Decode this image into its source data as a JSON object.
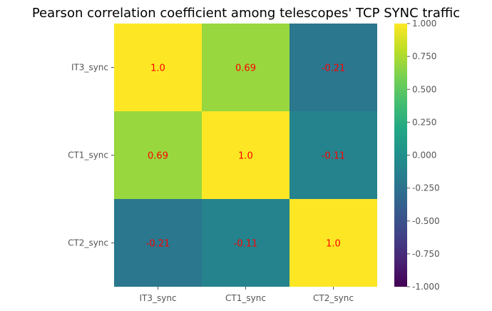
{
  "chart_data": {
    "type": "heatmap",
    "title": "Pearson correlation coefficient among telescopes' TCP SYNC traffic",
    "xlabel": "",
    "ylabel": "",
    "x_categories": [
      "IT3_sync",
      "CT1_sync",
      "CT2_sync"
    ],
    "y_categories": [
      "IT3_sync",
      "CT1_sync",
      "CT2_sync"
    ],
    "values": [
      [
        1.0,
        0.69,
        -0.21
      ],
      [
        0.69,
        1.0,
        -0.11
      ],
      [
        -0.21,
        -0.11,
        1.0
      ]
    ],
    "cell_labels": [
      [
        "1.0",
        "0.69",
        "-0.21"
      ],
      [
        "0.69",
        "1.0",
        "-0.11"
      ],
      [
        "-0.21",
        "-0.11",
        "1.0"
      ]
    ],
    "colormap": "viridis",
    "vmin": -1.0,
    "vmax": 1.0,
    "colorbar_ticks": [
      "1.000",
      "0.750",
      "0.500",
      "0.250",
      "0.000",
      "-0.250",
      "-0.500",
      "-0.750",
      "-1.000"
    ],
    "colorbar_tick_values": [
      1.0,
      0.75,
      0.5,
      0.25,
      0.0,
      -0.25,
      -0.5,
      -0.75,
      -1.0
    ],
    "annotation_color": "#ff0000",
    "grid": false,
    "legend": "colorbar-right"
  }
}
